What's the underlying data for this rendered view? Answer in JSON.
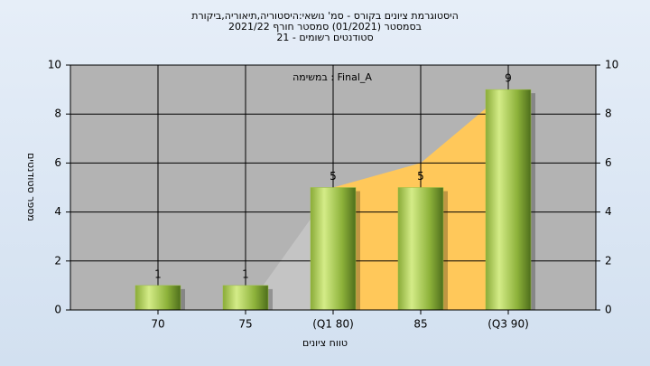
{
  "chart_data": {
    "type": "bar",
    "title": "היסטוגרמת ציונים בקורס - סמ' נושאי:היסטוריה,תיאוריה,ביקורת",
    "subtitle": [
      "בסמסטר (01/2021) סמסטר חורף 2021/22",
      "סטודנטים רשומים - 21"
    ],
    "annotation": "במשימה : Final_A",
    "x_label": "טווח ציונים",
    "y_label": "מספר סטודנטים",
    "categories": [
      "70",
      "75",
      "(Q1 80)",
      "85",
      "(Q3 90)"
    ],
    "values": [
      1,
      1,
      5,
      5,
      9
    ],
    "color": "#9cc040",
    "areas": [
      {
        "color": "#c4c4c4",
        "values": [
          null,
          0,
          5,
          null,
          null
        ]
      },
      {
        "color": "#ffc85a",
        "values": [
          null,
          null,
          5,
          6,
          9
        ]
      }
    ],
    "ylim": [
      0,
      10
    ],
    "yticks": [
      0,
      2,
      4,
      6,
      8,
      10
    ],
    "y2lim": [
      0,
      10
    ],
    "y2ticks": [
      0,
      2,
      4,
      6,
      8,
      10
    ],
    "grid": true
  }
}
